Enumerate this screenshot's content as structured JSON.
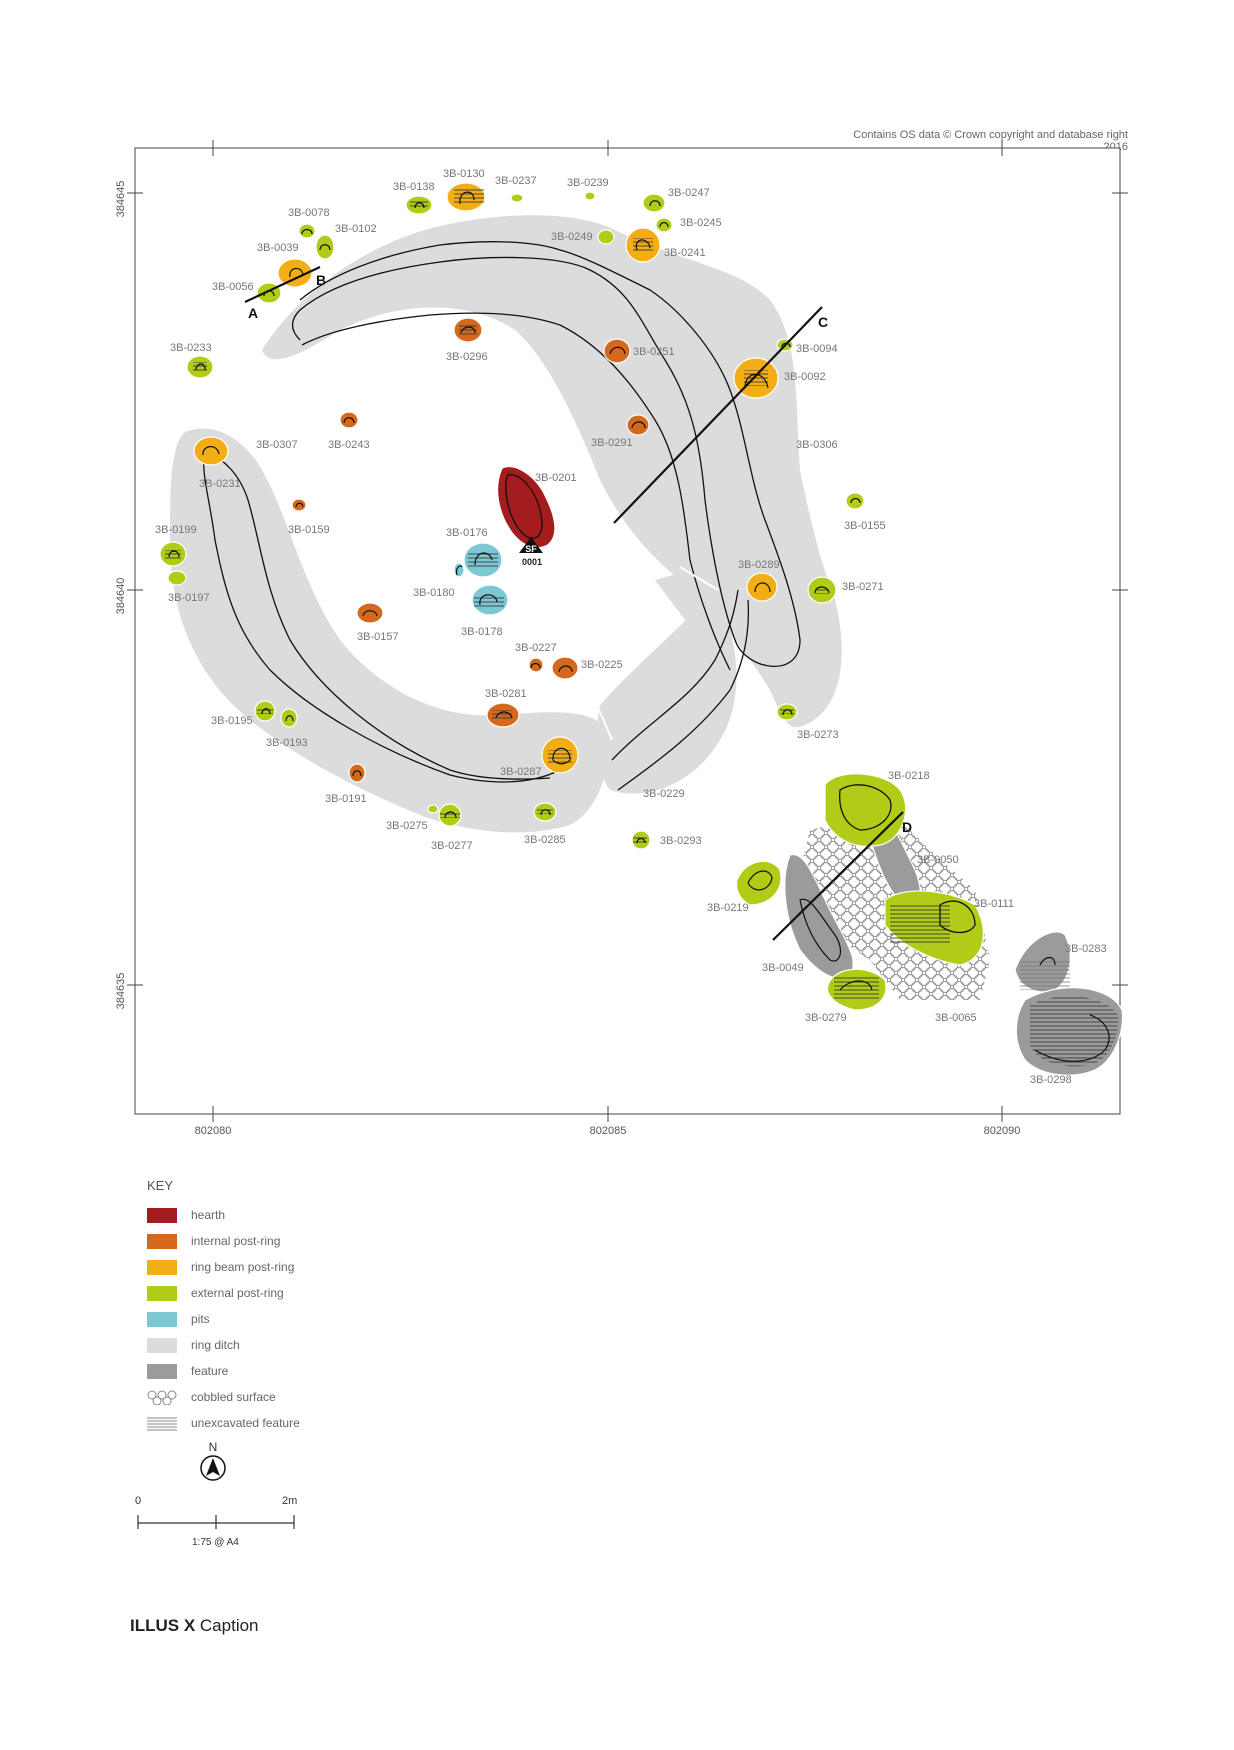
{
  "copyright": "Contains OS data © Crown copyright and database right 2016",
  "coordinates": {
    "northings": [
      "384645",
      "384640",
      "384635"
    ],
    "eastings": [
      "802080",
      "802085",
      "802090"
    ]
  },
  "section_labels": [
    "A",
    "B",
    "C",
    "D"
  ],
  "small_find": {
    "tag": "SF",
    "number": "0001"
  },
  "colors": {
    "hearth": "#a51c1e",
    "internal_post_ring": "#d4691e",
    "ring_beam_post_ring": "#f2ae14",
    "external_post_ring": "#b2cb16",
    "pits": "#7cc8d4",
    "ring_ditch": "#dcdcdc",
    "feature": "#9b9b9b"
  },
  "features": [
    {
      "id": "3B-0130",
      "type": "ring_beam_post_ring"
    },
    {
      "id": "3B-0138",
      "type": "external_post_ring"
    },
    {
      "id": "3B-0237",
      "type": "external_post_ring"
    },
    {
      "id": "3B-0239",
      "type": "external_post_ring"
    },
    {
      "id": "3B-0247",
      "type": "external_post_ring"
    },
    {
      "id": "3B-0245",
      "type": "external_post_ring"
    },
    {
      "id": "3B-0241",
      "type": "ring_beam_post_ring"
    },
    {
      "id": "3B-0249",
      "type": "external_post_ring"
    },
    {
      "id": "3B-0078",
      "type": "external_post_ring"
    },
    {
      "id": "3B-0102",
      "type": "external_post_ring"
    },
    {
      "id": "3B-0039",
      "type": "ring_beam_post_ring"
    },
    {
      "id": "3B-0056",
      "type": "external_post_ring"
    },
    {
      "id": "3B-0233",
      "type": "external_post_ring"
    },
    {
      "id": "3B-0296",
      "type": "internal_post_ring"
    },
    {
      "id": "3B-0251",
      "type": "internal_post_ring"
    },
    {
      "id": "3B-0094",
      "type": "external_post_ring"
    },
    {
      "id": "3B-0092",
      "type": "ring_beam_post_ring"
    },
    {
      "id": "3B-0243",
      "type": "internal_post_ring"
    },
    {
      "id": "3B-0307",
      "type": "ring_ditch"
    },
    {
      "id": "3B-0231",
      "type": "ring_beam_post_ring"
    },
    {
      "id": "3B-0291",
      "type": "internal_post_ring"
    },
    {
      "id": "3B-0306",
      "type": "ring_ditch"
    },
    {
      "id": "3B-0201",
      "type": "hearth"
    },
    {
      "id": "3B-0159",
      "type": "internal_post_ring"
    },
    {
      "id": "3B-0155",
      "type": "external_post_ring"
    },
    {
      "id": "3B-0199",
      "type": "external_post_ring"
    },
    {
      "id": "3B-0176",
      "type": "pits"
    },
    {
      "id": "3B-0197",
      "type": "external_post_ring"
    },
    {
      "id": "3B-0180",
      "type": "pits"
    },
    {
      "id": "3B-0289",
      "type": "ring_beam_post_ring"
    },
    {
      "id": "3B-0271",
      "type": "external_post_ring"
    },
    {
      "id": "3B-0178",
      "type": "pits"
    },
    {
      "id": "3B-0157",
      "type": "internal_post_ring"
    },
    {
      "id": "3B-0227",
      "type": "internal_post_ring"
    },
    {
      "id": "3B-0225",
      "type": "internal_post_ring"
    },
    {
      "id": "3B-0281",
      "type": "internal_post_ring"
    },
    {
      "id": "3B-0195",
      "type": "external_post_ring"
    },
    {
      "id": "3B-0193",
      "type": "external_post_ring"
    },
    {
      "id": "3B-0273",
      "type": "external_post_ring"
    },
    {
      "id": "3B-0287",
      "type": "ring_beam_post_ring"
    },
    {
      "id": "3B-0218",
      "type": "external_post_ring"
    },
    {
      "id": "3B-0191",
      "type": "internal_post_ring"
    },
    {
      "id": "3B-0229",
      "type": "ring_ditch"
    },
    {
      "id": "3B-0275",
      "type": "external_post_ring"
    },
    {
      "id": "3B-0277",
      "type": "external_post_ring"
    },
    {
      "id": "3B-0285",
      "type": "external_post_ring"
    },
    {
      "id": "3B-0293",
      "type": "external_post_ring"
    },
    {
      "id": "3B-0050",
      "type": "feature"
    },
    {
      "id": "3B-0219",
      "type": "external_post_ring"
    },
    {
      "id": "3B-0111",
      "type": "external_post_ring"
    },
    {
      "id": "3B-0049",
      "type": "feature"
    },
    {
      "id": "3B-0283",
      "type": "feature"
    },
    {
      "id": "3B-0279",
      "type": "external_post_ring"
    },
    {
      "id": "3B-0065",
      "type": "cobbled_surface"
    },
    {
      "id": "3B-0298",
      "type": "feature"
    }
  ],
  "key": {
    "title": "KEY",
    "items": [
      {
        "label": "hearth",
        "swatch": "hearth"
      },
      {
        "label": "internal post-ring",
        "swatch": "internal"
      },
      {
        "label": "ring beam post-ring",
        "swatch": "ringbeam"
      },
      {
        "label": "external post-ring",
        "swatch": "external"
      },
      {
        "label": "pits",
        "swatch": "pits"
      },
      {
        "label": "ring ditch",
        "swatch": "ditch"
      },
      {
        "label": "feature",
        "swatch": "feature"
      },
      {
        "label": "cobbled surface",
        "swatch": "cobbled"
      },
      {
        "label": "unexcavated feature",
        "swatch": "hatched"
      }
    ]
  },
  "north_label": "N",
  "scale": {
    "start": "0",
    "end": "2m",
    "ratio": "1:75 @ A4"
  },
  "caption": {
    "bold": "ILLUS X",
    "text": "Caption"
  }
}
